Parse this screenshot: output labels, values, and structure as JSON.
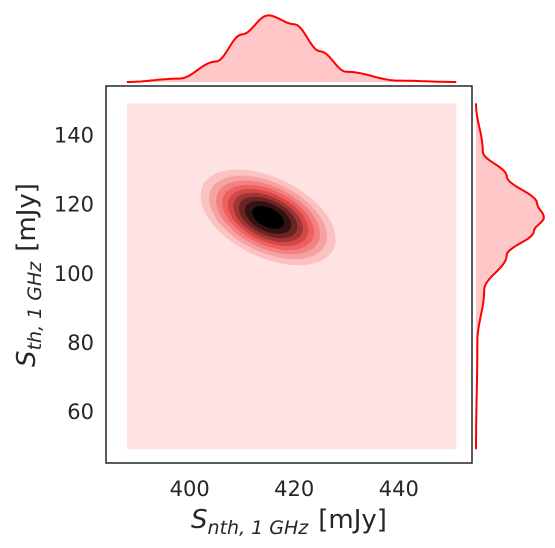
{
  "chart_data": {
    "type": "jointplot-kde",
    "style": "white",
    "grid": false,
    "colors": {
      "accent": "#ff0000",
      "fill_light": "#ffc7c7",
      "bg_level": "#ffe3e3",
      "dark": "#000000"
    },
    "xlabel": {
      "main": "S",
      "sub": "nth, 1 GHz",
      "unit": "[mJy]"
    },
    "ylabel": {
      "main": "S",
      "sub": "th, 1 GHz",
      "unit": "[mJy]"
    },
    "xlim": [
      384.0,
      454.0
    ],
    "ylim": [
      45.0,
      154.0
    ],
    "xticks": [
      400,
      420,
      440
    ],
    "yticks": [
      60,
      80,
      100,
      120,
      140
    ],
    "joint": {
      "center": [
        415.0,
        116.0
      ],
      "sigma": [
        7.0,
        7.5
      ],
      "rho": -0.45,
      "levels": 10,
      "support_x": [
        388.0,
        451.0
      ],
      "support_y": [
        49.0,
        149.0
      ]
    },
    "marginal_x": {
      "x": [
        388,
        398,
        405,
        410,
        415,
        420,
        425,
        430,
        440,
        451
      ],
      "density": [
        0.0,
        0.05,
        0.3,
        0.7,
        0.98,
        0.85,
        0.45,
        0.15,
        0.02,
        0.0
      ]
    },
    "marginal_y": {
      "y": [
        49,
        80,
        95,
        105,
        112,
        116,
        120,
        128,
        135,
        149
      ],
      "density": [
        0.0,
        0.02,
        0.12,
        0.45,
        0.85,
        1.0,
        0.9,
        0.45,
        0.1,
        0.0
      ]
    }
  }
}
